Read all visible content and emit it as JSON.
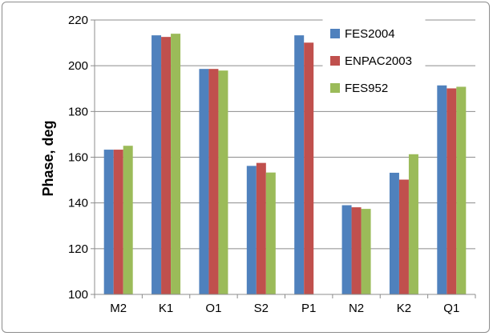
{
  "chart_data": {
    "type": "bar",
    "categories": [
      "M2",
      "K1",
      "O1",
      "S2",
      "P1",
      "N2",
      "K2",
      "Q1"
    ],
    "series": [
      {
        "name": "FES2004",
        "color": "#4f81bd",
        "values": [
          163.3,
          213.3,
          198.6,
          156.2,
          213.3,
          139.0,
          153.2,
          191.4
        ]
      },
      {
        "name": "ENPAC2003",
        "color": "#c0504d",
        "values": [
          163.3,
          212.6,
          198.6,
          157.5,
          210.1,
          138.1,
          150.2,
          190.1
        ]
      },
      {
        "name": "FES952",
        "color": "#9bbb59",
        "values": [
          165.0,
          214.0,
          197.9,
          153.3,
          null,
          137.4,
          161.3,
          190.8
        ]
      }
    ],
    "ylabel": "Phase, deg",
    "xlabel": "",
    "ylim": [
      100,
      220
    ],
    "yticks": [
      100,
      120,
      140,
      160,
      180,
      200,
      220
    ],
    "grid": true,
    "legend_position": "top-right"
  }
}
